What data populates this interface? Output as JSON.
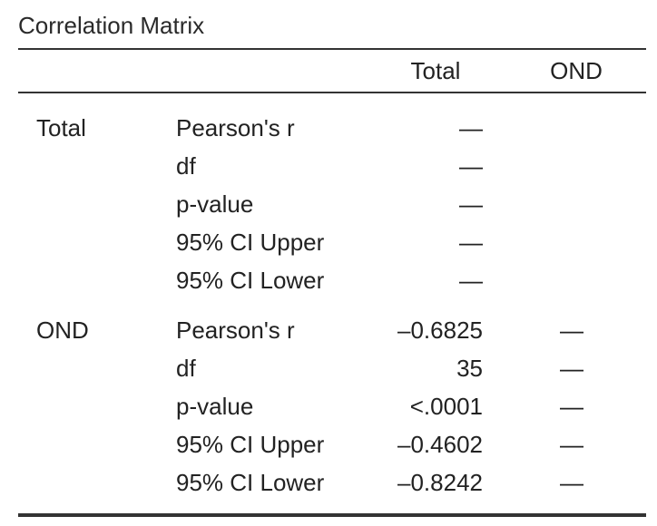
{
  "table": {
    "title": "Correlation Matrix",
    "columns": [
      "Total",
      "OND"
    ],
    "groups": [
      {
        "variable": "Total",
        "rows": [
          {
            "stat": "Pearson's r",
            "values": [
              "—",
              ""
            ]
          },
          {
            "stat": "df",
            "values": [
              "—",
              ""
            ]
          },
          {
            "stat": "p-value",
            "values": [
              "—",
              ""
            ]
          },
          {
            "stat": "95% CI Upper",
            "values": [
              "—",
              ""
            ]
          },
          {
            "stat": "95% CI Lower",
            "values": [
              "—",
              ""
            ]
          }
        ]
      },
      {
        "variable": "OND",
        "rows": [
          {
            "stat": "Pearson's r",
            "values": [
              "–0.6825",
              "—"
            ]
          },
          {
            "stat": "df",
            "values": [
              "35",
              "—"
            ]
          },
          {
            "stat": "p-value",
            "values": [
              "<.0001",
              "—"
            ]
          },
          {
            "stat": "95% CI Upper",
            "values": [
              "–0.4602",
              "—"
            ]
          },
          {
            "stat": "95% CI Lower",
            "values": [
              "–0.8242",
              "—"
            ]
          }
        ]
      }
    ]
  }
}
